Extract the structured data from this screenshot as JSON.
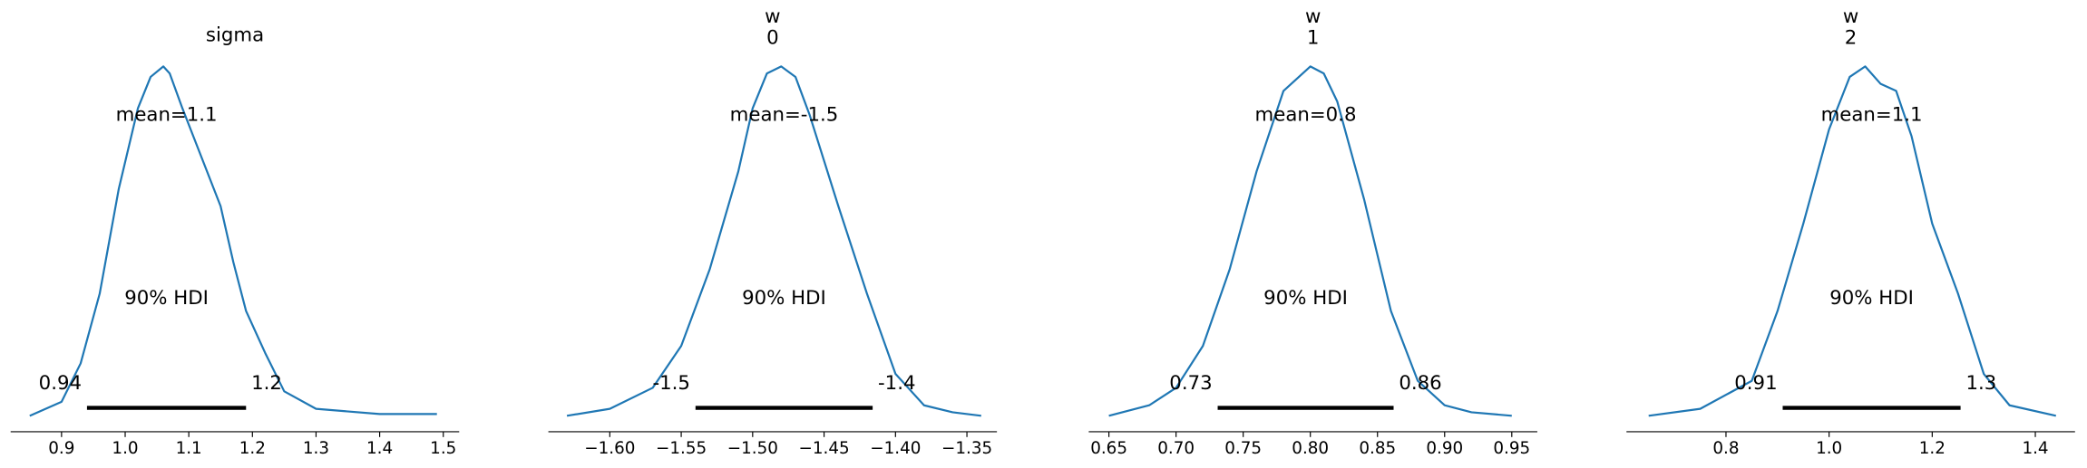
{
  "chart_data": [
    {
      "type": "density",
      "title": "sigma",
      "x": [
        0.85,
        0.9,
        0.93,
        0.96,
        0.99,
        1.02,
        1.04,
        1.06,
        1.07,
        1.09,
        1.12,
        1.15,
        1.17,
        1.19,
        1.22,
        1.25,
        1.3,
        1.4,
        1.49
      ],
      "y": [
        0.0,
        0.04,
        0.15,
        0.35,
        0.65,
        0.88,
        0.97,
        1.0,
        0.98,
        0.88,
        0.74,
        0.6,
        0.44,
        0.3,
        0.18,
        0.07,
        0.02,
        0.005,
        0.005
      ],
      "color": "#1f77b4",
      "mean_label": "mean=1.1",
      "hdi_label": "90% HDI",
      "hdi": [
        0.94,
        1.19
      ],
      "hdi_labels": [
        "0.94",
        "1.2"
      ],
      "xlim": [
        0.82,
        1.525
      ],
      "xticks": [
        0.9,
        {
          "value": 1,
          "label": "1.0"
        },
        1.1,
        1.2,
        1.3,
        1.4,
        1.5
      ]
    },
    {
      "type": "density",
      "title": "w",
      "subtitle": "0",
      "x": [
        -1.63,
        -1.6,
        -1.57,
        -1.55,
        -1.53,
        -1.51,
        -1.5,
        -1.49,
        -1.48,
        -1.47,
        -1.46,
        -1.44,
        -1.42,
        -1.4,
        -1.38,
        -1.36,
        -1.34
      ],
      "y": [
        0.0,
        0.02,
        0.08,
        0.2,
        0.42,
        0.7,
        0.88,
        0.98,
        1.0,
        0.97,
        0.86,
        0.6,
        0.35,
        0.12,
        0.03,
        0.01,
        0.0
      ],
      "color": "#1f77b4",
      "mean_label": "mean=-1.5",
      "hdi_label": "90% HDI",
      "hdi": [
        -1.54,
        -1.416
      ],
      "hdi_labels": [
        "-1.5",
        "-1.4"
      ],
      "xlim": [
        -1.643,
        -1.329
      ],
      "xticks": [
        {
          "value": -1.6,
          "label": "−1.60"
        },
        {
          "value": -1.55,
          "label": "−1.55"
        },
        {
          "value": -1.5,
          "label": "−1.50"
        },
        {
          "value": -1.45,
          "label": "−1.45"
        },
        {
          "value": -1.4,
          "label": "−1.40"
        },
        {
          "value": -1.35,
          "label": "−1.35"
        }
      ]
    },
    {
      "type": "density",
      "title": "w",
      "subtitle": "1",
      "x": [
        0.65,
        0.68,
        0.7,
        0.72,
        0.74,
        0.76,
        0.78,
        0.8,
        0.81,
        0.82,
        0.84,
        0.86,
        0.88,
        0.9,
        0.92,
        0.95
      ],
      "y": [
        0.0,
        0.03,
        0.08,
        0.2,
        0.42,
        0.7,
        0.93,
        1.0,
        0.98,
        0.9,
        0.62,
        0.3,
        0.1,
        0.03,
        0.01,
        0.0
      ],
      "color": "#1f77b4",
      "mean_label": "mean=0.8",
      "hdi_label": "90% HDI",
      "hdi": [
        0.731,
        0.862
      ],
      "hdi_labels": [
        "0.73",
        "0.86"
      ],
      "xlim": [
        0.635,
        0.969
      ],
      "xticks": [
        0.65,
        {
          "value": 0.7,
          "label": "0.70"
        },
        0.75,
        {
          "value": 0.8,
          "label": "0.80"
        },
        0.85,
        {
          "value": 0.9,
          "label": "0.90"
        },
        0.95
      ]
    },
    {
      "type": "density",
      "title": "w",
      "subtitle": "2",
      "x": [
        0.65,
        0.75,
        0.85,
        0.9,
        0.95,
        1.0,
        1.04,
        1.07,
        1.1,
        1.13,
        1.16,
        1.2,
        1.25,
        1.3,
        1.35,
        1.44
      ],
      "y": [
        0.0,
        0.02,
        0.1,
        0.3,
        0.55,
        0.82,
        0.97,
        1.0,
        0.95,
        0.93,
        0.8,
        0.55,
        0.35,
        0.12,
        0.03,
        0.0
      ],
      "color": "#1f77b4",
      "mean_label": "mean=1.1",
      "hdi_label": "90% HDI",
      "hdi": [
        0.91,
        1.255
      ],
      "hdi_labels": [
        "0.91",
        "1.3"
      ],
      "xlim": [
        0.607,
        1.477
      ],
      "xticks": [
        0.8,
        {
          "value": 1,
          "label": "1.0"
        },
        1.2,
        1.4
      ]
    }
  ]
}
